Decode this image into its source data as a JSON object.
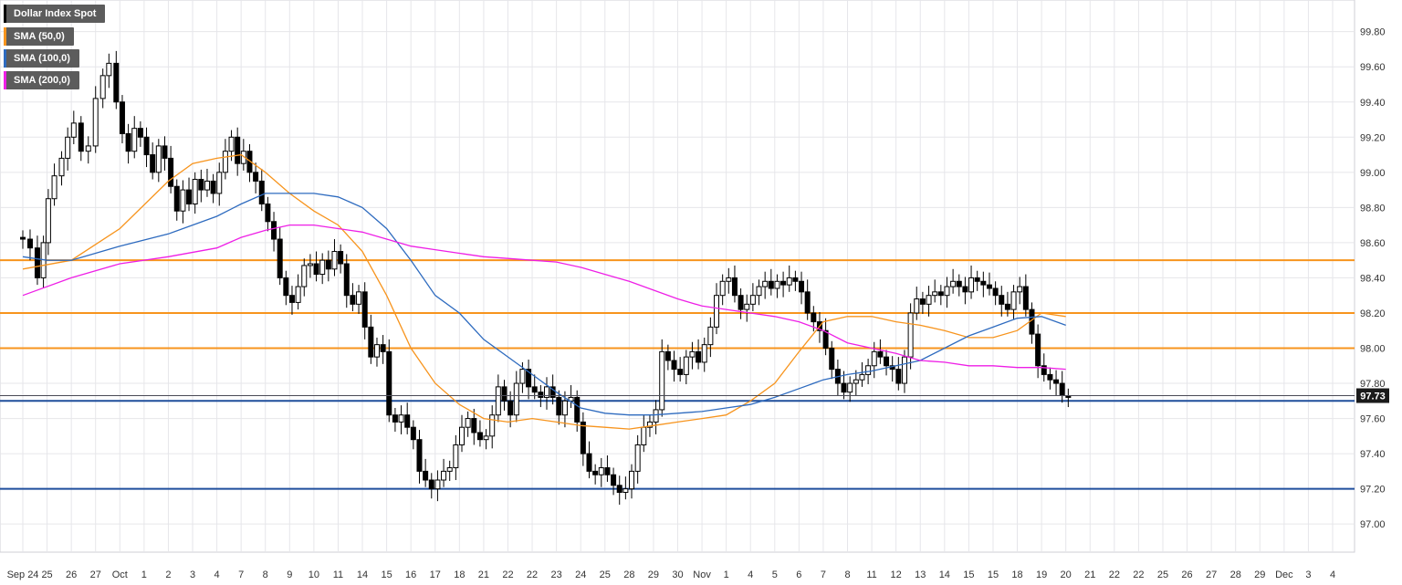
{
  "colors": {
    "background": "#ffffff",
    "grid": "#e6e6ea",
    "axis_text": "#333333",
    "candle": "#000000",
    "sma50": "#f7941d",
    "sma100": "#2e6bbf",
    "sma200": "#ee1fe6",
    "resistance": "#f7941d",
    "support": "#1f4e9c",
    "price_label_bg": "#1a1a1a",
    "legend_bg": "#5c5c5c"
  },
  "legend": [
    {
      "label": "Dollar Index Spot",
      "color": "#000000"
    },
    {
      "label": "SMA (50,0)",
      "color": "#f7941d"
    },
    {
      "label": "SMA (100,0)",
      "color": "#2e6bbf"
    },
    {
      "label": "SMA (200,0)",
      "color": "#ee1fe6"
    }
  ],
  "chart_data": {
    "type": "candlestick",
    "title": "Dollar Index Spot",
    "ylim": [
      96.84,
      99.98
    ],
    "y_ticks": [
      "99.80",
      "99.60",
      "99.40",
      "99.20",
      "99.00",
      "98.80",
      "98.60",
      "98.40",
      "98.20",
      "98.00",
      "97.80",
      "97.60",
      "97.40",
      "97.20",
      "97.00"
    ],
    "x_ticks": [
      "Sep 24",
      "25",
      "26",
      "27",
      "Oct",
      "1",
      "2",
      "3",
      "4",
      "7",
      "8",
      "9",
      "10",
      "11",
      "14",
      "15",
      "16",
      "17",
      "18",
      "21",
      "22",
      "22",
      "23",
      "24",
      "25",
      "28",
      "29",
      "30",
      "Nov",
      "1",
      "4",
      "5",
      "6",
      "7",
      "8",
      "11",
      "12",
      "13",
      "14",
      "15",
      "15",
      "18",
      "19",
      "20",
      "21",
      "22",
      "22",
      "25",
      "26",
      "27",
      "28",
      "29",
      "Dec",
      "3",
      "4"
    ],
    "current_price": "97.73",
    "horizontal_levels": [
      {
        "value": 98.5,
        "role": "resistance"
      },
      {
        "value": 98.2,
        "role": "resistance"
      },
      {
        "value": 98.0,
        "role": "resistance"
      },
      {
        "value": 97.7,
        "role": "support"
      },
      {
        "value": 97.2,
        "role": "support"
      }
    ],
    "price_path": [
      [
        0,
        98.63
      ],
      [
        0.3,
        98.62
      ],
      [
        0.6,
        98.57
      ],
      [
        0.85,
        98.4
      ],
      [
        1.05,
        98.6
      ],
      [
        1.3,
        98.85
      ],
      [
        1.6,
        98.98
      ],
      [
        1.85,
        99.08
      ],
      [
        2.1,
        99.2
      ],
      [
        2.4,
        99.28
      ],
      [
        2.7,
        99.12
      ],
      [
        3.0,
        99.15
      ],
      [
        3.3,
        99.42
      ],
      [
        3.55,
        99.55
      ],
      [
        3.85,
        99.62
      ],
      [
        4.1,
        99.4
      ],
      [
        4.35,
        99.22
      ],
      [
        4.6,
        99.12
      ],
      [
        4.85,
        99.25
      ],
      [
        5.1,
        99.2
      ],
      [
        5.35,
        99.1
      ],
      [
        5.6,
        99.0
      ],
      [
        5.85,
        99.15
      ],
      [
        6.1,
        99.08
      ],
      [
        6.35,
        98.92
      ],
      [
        6.6,
        98.78
      ],
      [
        6.85,
        98.9
      ],
      [
        7.1,
        98.82
      ],
      [
        7.35,
        98.96
      ],
      [
        7.6,
        98.9
      ],
      [
        7.85,
        98.95
      ],
      [
        8.1,
        98.88
      ],
      [
        8.35,
        99.0
      ],
      [
        8.6,
        99.12
      ],
      [
        8.85,
        99.2
      ],
      [
        9.1,
        99.05
      ],
      [
        9.35,
        99.12
      ],
      [
        9.6,
        99.0
      ],
      [
        9.85,
        98.95
      ],
      [
        10.1,
        98.82
      ],
      [
        10.35,
        98.72
      ],
      [
        10.6,
        98.62
      ],
      [
        10.85,
        98.4
      ],
      [
        11.1,
        98.3
      ],
      [
        11.35,
        98.26
      ],
      [
        11.6,
        98.35
      ],
      [
        11.85,
        98.47
      ],
      [
        12.1,
        98.48
      ],
      [
        12.35,
        98.42
      ],
      [
        12.6,
        98.5
      ],
      [
        12.85,
        98.45
      ],
      [
        13.1,
        98.55
      ],
      [
        13.35,
        98.48
      ],
      [
        13.6,
        98.3
      ],
      [
        13.85,
        98.25
      ],
      [
        14.1,
        98.32
      ],
      [
        14.35,
        98.12
      ],
      [
        14.6,
        97.95
      ],
      [
        14.85,
        98.02
      ],
      [
        15.1,
        97.98
      ],
      [
        15.35,
        97.62
      ],
      [
        15.6,
        97.58
      ],
      [
        15.85,
        97.62
      ],
      [
        16.1,
        97.55
      ],
      [
        16.35,
        97.48
      ],
      [
        16.6,
        97.3
      ],
      [
        16.85,
        97.25
      ],
      [
        17.1,
        97.2
      ],
      [
        17.35,
        97.25
      ],
      [
        17.6,
        97.3
      ],
      [
        17.85,
        97.32
      ],
      [
        18.1,
        97.45
      ],
      [
        18.35,
        97.55
      ],
      [
        18.6,
        97.6
      ],
      [
        18.85,
        97.52
      ],
      [
        19.1,
        97.48
      ],
      [
        19.35,
        97.5
      ],
      [
        19.6,
        97.62
      ],
      [
        19.85,
        97.78
      ],
      [
        20.1,
        97.7
      ],
      [
        20.35,
        97.62
      ],
      [
        20.6,
        97.8
      ],
      [
        20.85,
        97.88
      ],
      [
        21.1,
        97.78
      ],
      [
        21.35,
        97.75
      ],
      [
        21.6,
        97.72
      ],
      [
        21.85,
        97.78
      ],
      [
        22.1,
        97.72
      ],
      [
        22.35,
        97.62
      ],
      [
        22.6,
        97.7
      ],
      [
        22.85,
        97.72
      ],
      [
        23.1,
        97.58
      ],
      [
        23.35,
        97.4
      ],
      [
        23.6,
        97.3
      ],
      [
        23.85,
        97.28
      ],
      [
        24.1,
        97.32
      ],
      [
        24.35,
        97.28
      ],
      [
        24.6,
        97.22
      ],
      [
        24.85,
        97.18
      ],
      [
        25.1,
        97.2
      ],
      [
        25.35,
        97.3
      ],
      [
        25.6,
        97.45
      ],
      [
        25.85,
        97.55
      ],
      [
        26.1,
        97.58
      ],
      [
        26.35,
        97.65
      ],
      [
        26.6,
        97.98
      ],
      [
        26.85,
        97.93
      ],
      [
        27.1,
        97.88
      ],
      [
        27.35,
        97.85
      ],
      [
        27.6,
        97.95
      ],
      [
        27.85,
        97.98
      ],
      [
        28.1,
        97.92
      ],
      [
        28.35,
        98.02
      ],
      [
        28.6,
        98.12
      ],
      [
        28.85,
        98.3
      ],
      [
        29.1,
        98.38
      ],
      [
        29.35,
        98.4
      ],
      [
        29.6,
        98.3
      ],
      [
        29.85,
        98.22
      ],
      [
        30.1,
        98.25
      ],
      [
        30.35,
        98.3
      ],
      [
        30.6,
        98.35
      ],
      [
        30.85,
        98.38
      ],
      [
        31.1,
        98.34
      ],
      [
        31.35,
        98.38
      ],
      [
        31.6,
        98.36
      ],
      [
        31.85,
        98.4
      ],
      [
        32.1,
        98.38
      ],
      [
        32.35,
        98.32
      ],
      [
        32.6,
        98.2
      ],
      [
        32.85,
        98.15
      ],
      [
        33.1,
        98.1
      ],
      [
        33.35,
        98.0
      ],
      [
        33.6,
        97.88
      ],
      [
        33.85,
        97.8
      ],
      [
        34.1,
        97.75
      ],
      [
        34.35,
        97.8
      ],
      [
        34.6,
        97.82
      ],
      [
        34.85,
        97.85
      ],
      [
        35.1,
        97.9
      ],
      [
        35.35,
        97.98
      ],
      [
        35.6,
        97.95
      ],
      [
        35.85,
        97.9
      ],
      [
        36.1,
        97.88
      ],
      [
        36.35,
        97.8
      ],
      [
        36.6,
        97.95
      ],
      [
        36.85,
        98.2
      ],
      [
        37.1,
        98.28
      ],
      [
        37.35,
        98.25
      ],
      [
        37.6,
        98.3
      ],
      [
        37.85,
        98.32
      ],
      [
        38.1,
        98.3
      ],
      [
        38.35,
        98.35
      ],
      [
        38.6,
        98.38
      ],
      [
        38.85,
        98.35
      ],
      [
        39.1,
        98.32
      ],
      [
        39.35,
        98.4
      ],
      [
        39.6,
        98.38
      ],
      [
        39.85,
        98.36
      ],
      [
        40.1,
        98.34
      ],
      [
        40.35,
        98.3
      ],
      [
        40.6,
        98.25
      ],
      [
        40.85,
        98.22
      ],
      [
        41.1,
        98.32
      ],
      [
        41.35,
        98.35
      ],
      [
        41.6,
        98.22
      ],
      [
        41.85,
        98.08
      ],
      [
        42.1,
        97.9
      ],
      [
        42.35,
        97.85
      ],
      [
        42.6,
        97.82
      ],
      [
        42.85,
        97.8
      ],
      [
        43.1,
        97.73
      ],
      [
        43.35,
        97.72
      ]
    ],
    "series": [
      {
        "name": "SMA (50,0)",
        "points": [
          [
            0,
            98.45
          ],
          [
            2,
            98.5
          ],
          [
            4,
            98.68
          ],
          [
            6,
            98.95
          ],
          [
            7,
            99.05
          ],
          [
            8,
            99.08
          ],
          [
            9,
            99.1
          ],
          [
            10,
            99.0
          ],
          [
            11,
            98.88
          ],
          [
            12,
            98.78
          ],
          [
            13,
            98.7
          ],
          [
            14,
            98.55
          ],
          [
            15,
            98.3
          ],
          [
            16,
            98.0
          ],
          [
            17,
            97.8
          ],
          [
            18,
            97.68
          ],
          [
            19,
            97.6
          ],
          [
            20,
            97.58
          ],
          [
            21,
            97.6
          ],
          [
            22,
            97.58
          ],
          [
            23,
            97.56
          ],
          [
            24,
            97.55
          ],
          [
            25,
            97.54
          ],
          [
            26,
            97.56
          ],
          [
            27,
            97.58
          ],
          [
            28,
            97.6
          ],
          [
            29,
            97.62
          ],
          [
            30,
            97.7
          ],
          [
            31,
            97.8
          ],
          [
            32,
            97.98
          ],
          [
            33,
            98.15
          ],
          [
            34,
            98.18
          ],
          [
            35,
            98.18
          ],
          [
            36,
            98.15
          ],
          [
            37,
            98.13
          ],
          [
            38,
            98.1
          ],
          [
            39,
            98.06
          ],
          [
            40,
            98.06
          ],
          [
            41,
            98.1
          ],
          [
            42,
            98.2
          ],
          [
            43,
            98.18
          ]
        ]
      },
      {
        "name": "SMA (100,0)",
        "points": [
          [
            0,
            98.52
          ],
          [
            1,
            98.5
          ],
          [
            2,
            98.5
          ],
          [
            4,
            98.58
          ],
          [
            6,
            98.65
          ],
          [
            8,
            98.75
          ],
          [
            9,
            98.82
          ],
          [
            10,
            98.88
          ],
          [
            11,
            98.88
          ],
          [
            12,
            98.88
          ],
          [
            13,
            98.86
          ],
          [
            14,
            98.8
          ],
          [
            15,
            98.68
          ],
          [
            16,
            98.5
          ],
          [
            17,
            98.3
          ],
          [
            18,
            98.2
          ],
          [
            19,
            98.05
          ],
          [
            20,
            97.95
          ],
          [
            21,
            97.85
          ],
          [
            22,
            97.75
          ],
          [
            23,
            97.66
          ],
          [
            24,
            97.63
          ],
          [
            25,
            97.62
          ],
          [
            26,
            97.62
          ],
          [
            27,
            97.63
          ],
          [
            28,
            97.64
          ],
          [
            29,
            97.66
          ],
          [
            30,
            97.68
          ],
          [
            31,
            97.72
          ],
          [
            32,
            97.77
          ],
          [
            33,
            97.82
          ],
          [
            34,
            97.85
          ],
          [
            35,
            97.87
          ],
          [
            36,
            97.9
          ],
          [
            37,
            97.93
          ],
          [
            38,
            98.0
          ],
          [
            39,
            98.07
          ],
          [
            40,
            98.12
          ],
          [
            41,
            98.17
          ],
          [
            42,
            98.18
          ],
          [
            43,
            98.13
          ]
        ]
      },
      {
        "name": "SMA (200,0)",
        "points": [
          [
            0,
            98.3
          ],
          [
            2,
            98.4
          ],
          [
            4,
            98.48
          ],
          [
            6,
            98.52
          ],
          [
            8,
            98.57
          ],
          [
            9,
            98.63
          ],
          [
            10,
            98.67
          ],
          [
            11,
            98.7
          ],
          [
            12,
            98.7
          ],
          [
            13,
            98.68
          ],
          [
            14,
            98.66
          ],
          [
            15,
            98.62
          ],
          [
            16,
            98.58
          ],
          [
            17,
            98.56
          ],
          [
            18,
            98.54
          ],
          [
            19,
            98.52
          ],
          [
            20,
            98.51
          ],
          [
            21,
            98.5
          ],
          [
            22,
            98.49
          ],
          [
            23,
            98.46
          ],
          [
            24,
            98.42
          ],
          [
            25,
            98.38
          ],
          [
            26,
            98.33
          ],
          [
            27,
            98.28
          ],
          [
            28,
            98.24
          ],
          [
            29,
            98.22
          ],
          [
            30,
            98.2
          ],
          [
            31,
            98.18
          ],
          [
            32,
            98.15
          ],
          [
            33,
            98.1
          ],
          [
            34,
            98.03
          ],
          [
            35,
            98.0
          ],
          [
            36,
            97.97
          ],
          [
            37,
            97.93
          ],
          [
            38,
            97.92
          ],
          [
            39,
            97.9
          ],
          [
            40,
            97.9
          ],
          [
            41,
            97.89
          ],
          [
            42,
            97.89
          ],
          [
            43,
            97.88
          ]
        ]
      }
    ],
    "grid": true,
    "legend_position": "top-left"
  }
}
